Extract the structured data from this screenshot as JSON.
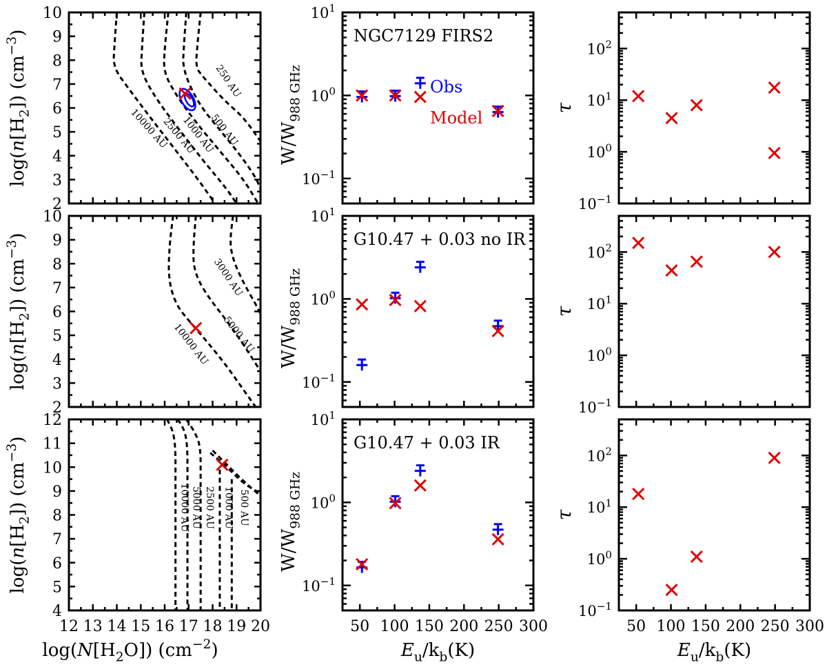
{
  "chart_data": [
    {
      "type": "contour",
      "id": "a1",
      "x_range": [
        12,
        20
      ],
      "y_range": [
        2,
        10
      ],
      "x_ticks": [
        "12",
        "13",
        "14",
        "15",
        "16",
        "17",
        "18",
        "19",
        "20"
      ],
      "y_ticks": [
        "2",
        "3",
        "4",
        "5",
        "6",
        "7",
        "8",
        "9",
        "10"
      ],
      "ylabel": "log(n[H2]) (cm^-3)",
      "best_fit": {
        "x": 16.85,
        "y": 6.6
      },
      "observed_ellipse": {
        "x": 16.95,
        "y": 6.35,
        "rx": 0.25,
        "ry": 0.5
      },
      "contours": [
        {
          "label": "250 AU",
          "points": [
            [
              17.5,
              10
            ],
            [
              17.35,
              8.5
            ],
            [
              17.3,
              7.7
            ],
            [
              17.6,
              7.3
            ],
            [
              18.5,
              6.3
            ],
            [
              19.3,
              5.6
            ],
            [
              20,
              4.6
            ]
          ],
          "label_at": [
            18.55,
            7.05
          ],
          "label_angle": 56
        },
        {
          "label": "500 AU",
          "points": [
            [
              16.9,
              10
            ],
            [
              16.8,
              8.6
            ],
            [
              16.75,
              7.6
            ],
            [
              17.4,
              6.2
            ],
            [
              18.2,
              5.2
            ],
            [
              19.1,
              4.1
            ],
            [
              19.8,
              3.1
            ],
            [
              20,
              2.6
            ]
          ],
          "label_at": [
            18.4,
            5.0
          ],
          "label_angle": 52
        },
        {
          "label": "1000 AU",
          "points": [
            [
              16.15,
              10
            ],
            [
              16.0,
              8.5
            ],
            [
              15.95,
              7.5
            ],
            [
              16.5,
              6.5
            ],
            [
              17.3,
              5.4
            ],
            [
              18.3,
              4.2
            ],
            [
              19.3,
              3.0
            ],
            [
              19.9,
              2.0
            ]
          ],
          "label_at": [
            17.3,
            4.8
          ],
          "label_angle": 52
        },
        {
          "label": "2500 AU",
          "points": [
            [
              15.15,
              10
            ],
            [
              15.05,
              8.5
            ],
            [
              15.0,
              7.5
            ],
            [
              15.7,
              6.3
            ],
            [
              16.6,
              5.1
            ],
            [
              17.6,
              3.8
            ],
            [
              18.6,
              2.6
            ],
            [
              19.0,
              2.0
            ]
          ],
          "label_at": [
            16.5,
            4.75
          ],
          "label_angle": 50
        },
        {
          "label": "10000 AU",
          "points": [
            [
              14.0,
              10
            ],
            [
              13.9,
              8.6
            ],
            [
              13.85,
              7.7
            ],
            [
              14.5,
              6.8
            ],
            [
              15.4,
              5.6
            ],
            [
              16.4,
              4.3
            ],
            [
              17.4,
              3.0
            ],
            [
              18.1,
              2.0
            ]
          ],
          "label_at": [
            15.25,
            5.05
          ],
          "label_angle": 48
        }
      ]
    },
    {
      "type": "scatter",
      "id": "b1",
      "title": "NGC7129 FIRS2",
      "yscale": "log",
      "x_range": [
        25,
        300
      ],
      "ylim": [
        0.05,
        10
      ],
      "x_ticks": [
        "50",
        "100",
        "150",
        "200",
        "250",
        "300"
      ],
      "y_ticks": [
        "10^-1",
        "10^0",
        "10^1"
      ],
      "ylabel": "W/W988 GHz",
      "legend": [
        "Obs",
        "Model"
      ],
      "series": [
        {
          "name": "Obs",
          "x": [
            53,
            101,
            137,
            249
          ],
          "y": [
            0.96,
            0.98,
            1.4,
            0.63
          ]
        },
        {
          "name": "Model",
          "x": [
            53,
            101,
            137,
            249
          ],
          "y": [
            1.0,
            1.0,
            0.96,
            0.65
          ]
        }
      ]
    },
    {
      "type": "scatter",
      "id": "c1",
      "yscale": "log",
      "x_range": [
        25,
        300
      ],
      "ylim": [
        0.1,
        500
      ],
      "x_ticks": [
        "50",
        "100",
        "150",
        "200",
        "250",
        "300"
      ],
      "y_ticks": [
        "10^-1",
        "10^0",
        "10^1",
        "10^2"
      ],
      "ylabel": "τ",
      "series": [
        {
          "name": "Model",
          "x": [
            53,
            101,
            137,
            249,
            249
          ],
          "y": [
            12,
            4.5,
            8,
            17.5,
            0.95
          ]
        }
      ]
    },
    {
      "type": "contour",
      "id": "a2",
      "x_range": [
        12,
        20
      ],
      "y_range": [
        2,
        10
      ],
      "x_ticks": [
        "12",
        "13",
        "14",
        "15",
        "16",
        "17",
        "18",
        "19",
        "20"
      ],
      "y_ticks": [
        "2",
        "3",
        "4",
        "5",
        "6",
        "7",
        "8",
        "9",
        "10"
      ],
      "ylabel": "log(n[H2]) (cm^-3)",
      "best_fit": {
        "x": 17.3,
        "y": 5.3
      },
      "contours": [
        {
          "label": "3000 AU",
          "points": [
            [
              18.85,
              10
            ],
            [
              18.72,
              8.9
            ],
            [
              18.85,
              8.2
            ],
            [
              19.1,
              7.6
            ],
            [
              19.4,
              7.0
            ],
            [
              19.8,
              6.3
            ],
            [
              20,
              5.9
            ]
          ],
          "label_at": [
            18.55,
            7.35
          ],
          "label_angle": 56
        },
        {
          "label": "5000 AU",
          "points": [
            [
              17.3,
              10
            ],
            [
              17.2,
              8.8
            ],
            [
              17.2,
              7.9
            ],
            [
              17.45,
              7.2
            ],
            [
              17.9,
              6.5
            ],
            [
              18.6,
              5.6
            ],
            [
              19.3,
              4.6
            ],
            [
              20,
              3.5
            ]
          ],
          "label_at": [
            19.0,
            4.95
          ],
          "label_angle": 52
        },
        {
          "label": "10000 AU",
          "points": [
            [
              16.35,
              10
            ],
            [
              16.2,
              8.8
            ],
            [
              16.15,
              7.4
            ],
            [
              16.45,
              6.3
            ],
            [
              17.1,
              5.5
            ],
            [
              17.8,
              4.7
            ],
            [
              18.6,
              3.7
            ],
            [
              19.3,
              2.7
            ],
            [
              19.8,
              2.0
            ]
          ],
          "label_at": [
            17.0,
            4.55
          ],
          "label_angle": 52
        }
      ]
    },
    {
      "type": "scatter",
      "id": "b2",
      "title": "G10.47 + 0.03 no IR",
      "yscale": "log",
      "x_range": [
        25,
        300
      ],
      "ylim": [
        0.05,
        10
      ],
      "x_ticks": [
        "50",
        "100",
        "150",
        "200",
        "250",
        "300"
      ],
      "y_ticks": [
        "10^-1",
        "10^0",
        "10^1"
      ],
      "ylabel": "W/W988 GHz",
      "series": [
        {
          "name": "Obs",
          "x": [
            53,
            101,
            137,
            249
          ],
          "y": [
            0.16,
            1.02,
            2.4,
            0.47
          ]
        },
        {
          "name": "Model",
          "x": [
            53,
            101,
            137,
            249
          ],
          "y": [
            0.86,
            0.97,
            0.82,
            0.41
          ]
        }
      ]
    },
    {
      "type": "scatter",
      "id": "c2",
      "yscale": "log",
      "x_range": [
        25,
        300
      ],
      "ylim": [
        0.1,
        500
      ],
      "x_ticks": [
        "50",
        "100",
        "150",
        "200",
        "250",
        "300"
      ],
      "y_ticks": [
        "10^-1",
        "10^0",
        "10^1",
        "10^2"
      ],
      "ylabel": "τ",
      "series": [
        {
          "name": "Model",
          "x": [
            53,
            101,
            137,
            249
          ],
          "y": [
            150,
            44,
            65,
            100
          ]
        }
      ]
    },
    {
      "type": "contour",
      "id": "a3",
      "x_range": [
        12,
        20
      ],
      "y_range": [
        4,
        12
      ],
      "x_ticks": [
        "12",
        "13",
        "14",
        "15",
        "16",
        "17",
        "18",
        "19",
        "20"
      ],
      "y_ticks": [
        "4",
        "5",
        "6",
        "7",
        "8",
        "9",
        "10",
        "11",
        "12"
      ],
      "xlabel": "log(N[H2O]) (cm^-2)",
      "ylabel": "log(n[H2]) (cm^-3)",
      "best_fit": {
        "x": 18.4,
        "y": 10.1
      },
      "contours": [
        {
          "label": "500 AU",
          "points": [
            [
              18.0,
              10.7
            ],
            [
              18.6,
              10.1
            ],
            [
              19.3,
              9.4
            ],
            [
              20,
              8.8
            ]
          ],
          "label_at": [
            19.2,
            8.3
          ],
          "label_angle": 90
        },
        {
          "label": "1000 AU",
          "points": [
            [
              17.9,
              10.6
            ],
            [
              18.5,
              10.1
            ],
            [
              19.3,
              9.3
            ],
            [
              20,
              8.9
            ]
          ],
          "label_at": [
            18.55,
            8.3
          ],
          "label_angle": 90
        },
        {
          "label": "2500 AU",
          "points": [
            [
              16.9,
              12
            ],
            [
              17.3,
              11.4
            ],
            [
              17.5,
              10.8
            ],
            [
              17.5,
              9.5
            ],
            [
              17.5,
              4
            ]
          ],
          "label_at": [
            17.75,
            8.3
          ],
          "label_angle": 90
        },
        {
          "label": "5000 AU",
          "points": [
            [
              16.55,
              12
            ],
            [
              16.85,
              11.5
            ],
            [
              16.95,
              10.8
            ],
            [
              16.95,
              9.5
            ],
            [
              16.95,
              4
            ]
          ],
          "label_at": [
            17.2,
            8.3
          ],
          "label_angle": 90
        },
        {
          "label": "10000 AU",
          "points": [
            [
              16.1,
              12
            ],
            [
              16.35,
              11.5
            ],
            [
              16.45,
              10.8
            ],
            [
              16.45,
              9.5
            ],
            [
              16.45,
              4
            ]
          ],
          "label_at": [
            16.7,
            8.3
          ],
          "label_angle": 90
        },
        {
          "label": "",
          "points": [
            [
              18.3,
              9.9
            ],
            [
              18.3,
              8.0
            ],
            [
              18.3,
              4
            ]
          ],
          "label_at": [
            0,
            0
          ],
          "label_angle": 90
        },
        {
          "label": "",
          "points": [
            [
              18.8,
              9.5
            ],
            [
              18.8,
              8.0
            ],
            [
              18.8,
              4
            ]
          ],
          "label_at": [
            0,
            0
          ],
          "label_angle": 90
        }
      ]
    },
    {
      "type": "scatter",
      "id": "b3",
      "title": "G10.47 + 0.03 IR",
      "yscale": "log",
      "x_range": [
        25,
        300
      ],
      "ylim": [
        0.05,
        10
      ],
      "x_ticks": [
        "50",
        "100",
        "150",
        "200",
        "250",
        "300"
      ],
      "y_ticks": [
        "10^-1",
        "10^0",
        "10^1"
      ],
      "xlabel": "Eu/kb(K)",
      "ylabel": "W/W988 GHz",
      "series": [
        {
          "name": "Obs",
          "x": [
            53,
            101,
            137,
            249
          ],
          "y": [
            0.165,
            1.02,
            2.4,
            0.47
          ]
        },
        {
          "name": "Model",
          "x": [
            53,
            101,
            137,
            249
          ],
          "y": [
            0.18,
            0.98,
            1.6,
            0.36
          ]
        }
      ]
    },
    {
      "type": "scatter",
      "id": "c3",
      "yscale": "log",
      "x_range": [
        25,
        300
      ],
      "ylim": [
        0.1,
        500
      ],
      "x_ticks": [
        "50",
        "100",
        "150",
        "200",
        "250",
        "300"
      ],
      "y_ticks": [
        "10^-1",
        "10^0",
        "10^1",
        "10^2"
      ],
      "xlabel": "Eu/kb(K)",
      "ylabel": "τ",
      "series": [
        {
          "name": "Model",
          "x": [
            53,
            101,
            137,
            249
          ],
          "y": [
            18,
            0.25,
            1.1,
            90
          ]
        }
      ]
    }
  ]
}
